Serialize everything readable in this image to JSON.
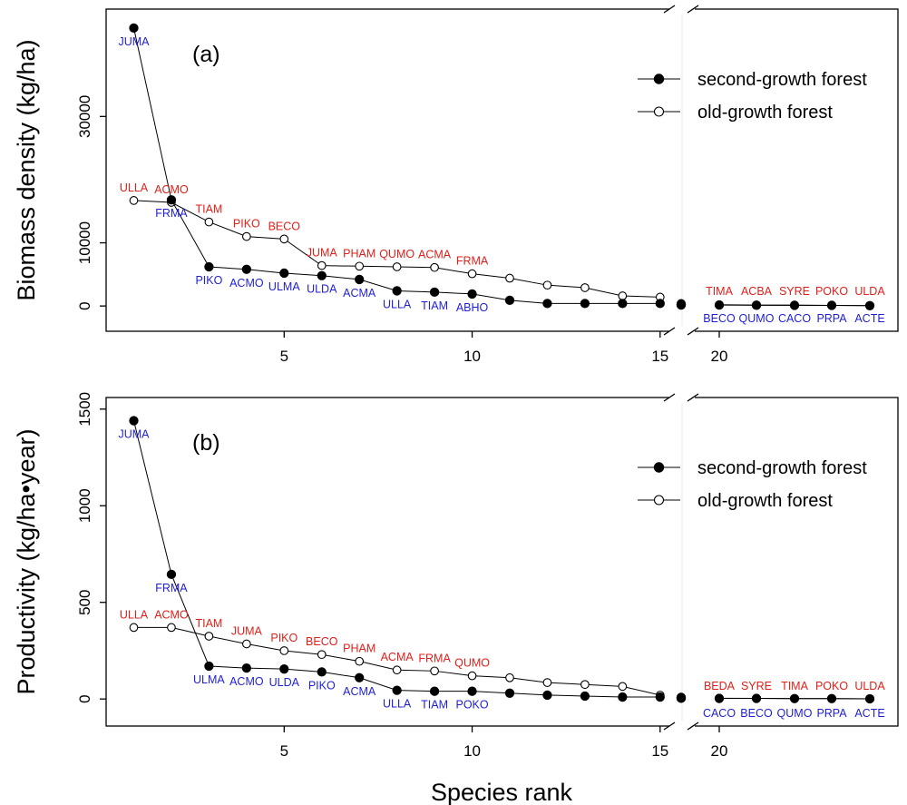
{
  "x_axis_label": "Species rank",
  "legend": {
    "second_growth": "second-growth forest",
    "old_growth": "old-growth forest"
  },
  "colors": {
    "label_second_growth": "#1f1fd6",
    "label_old_growth": "#e0201b"
  },
  "chart_data": [
    {
      "type": "line",
      "panel_label": "(a)",
      "ylabel": "Biomass density (kg/ha)",
      "xlabel": "Species rank",
      "x_axis_break": "between 15 and 20",
      "x_ticks": [
        5,
        10,
        15,
        20
      ],
      "y_ticks": [
        0,
        10000,
        30000
      ],
      "ylim": [
        -4000,
        47000
      ],
      "grid": false,
      "legend_position": "upper-right",
      "series": [
        {
          "name": "second-growth forest",
          "marker": "filled-circle",
          "x": [
            1,
            2,
            3,
            4,
            5,
            6,
            7,
            8,
            9,
            10,
            11,
            12,
            13,
            14,
            15,
            16,
            17,
            18,
            19,
            20,
            21,
            22,
            23,
            24
          ],
          "y": [
            44000,
            16800,
            6200,
            5800,
            5200,
            4800,
            4200,
            2400,
            2200,
            1900,
            900,
            400,
            400,
            400,
            400,
            300,
            200,
            200,
            150,
            150,
            120,
            100,
            100,
            50
          ],
          "labels": [
            {
              "x": 1,
              "text": "JUMA"
            },
            {
              "x": 2,
              "text": "FRMA"
            },
            {
              "x": 3,
              "text": "PIKO"
            },
            {
              "x": 4,
              "text": "ACMO"
            },
            {
              "x": 5,
              "text": "ULMA"
            },
            {
              "x": 6,
              "text": "ULDA"
            },
            {
              "x": 7,
              "text": "ACMA"
            },
            {
              "x": 8,
              "text": "ULLA"
            },
            {
              "x": 9,
              "text": "TIAM"
            },
            {
              "x": 10,
              "text": "ABHO"
            },
            {
              "x": 20,
              "text": "BECO"
            },
            {
              "x": 21,
              "text": "QUMO"
            },
            {
              "x": 22,
              "text": "CACO"
            },
            {
              "x": 23,
              "text": "PRPA"
            },
            {
              "x": 24,
              "text": "ACTE"
            }
          ]
        },
        {
          "name": "old-growth forest",
          "marker": "open-circle",
          "x": [
            1,
            2,
            3,
            4,
            5,
            6,
            7,
            8,
            9,
            10,
            11,
            12,
            13,
            14,
            15,
            16,
            17,
            18,
            19,
            20,
            21,
            22,
            23,
            24
          ],
          "y": [
            16700,
            16400,
            13300,
            11000,
            10600,
            6400,
            6300,
            6200,
            6100,
            5100,
            4400,
            3300,
            2900,
            1600,
            1400,
            400,
            300,
            250,
            200,
            200,
            150,
            150,
            100,
            50
          ],
          "labels": [
            {
              "x": 1,
              "text": "ULLA"
            },
            {
              "x": 2,
              "text": "ACMO"
            },
            {
              "x": 3,
              "text": "TIAM"
            },
            {
              "x": 4,
              "text": "PIKO"
            },
            {
              "x": 5,
              "text": "BECO"
            },
            {
              "x": 6,
              "text": "JUMA"
            },
            {
              "x": 7,
              "text": "PHAM"
            },
            {
              "x": 8,
              "text": "QUMO"
            },
            {
              "x": 9,
              "text": "ACMA"
            },
            {
              "x": 10,
              "text": "FRMA"
            },
            {
              "x": 20,
              "text": "TIMA"
            },
            {
              "x": 21,
              "text": "ACBA"
            },
            {
              "x": 22,
              "text": "SYRE"
            },
            {
              "x": 23,
              "text": "POKO"
            },
            {
              "x": 24,
              "text": "ULDA"
            }
          ]
        }
      ]
    },
    {
      "type": "line",
      "panel_label": "(b)",
      "ylabel": "Productivity (kg/ha•year)",
      "xlabel": "Species rank",
      "x_axis_break": "between 15 and 20",
      "x_ticks": [
        5,
        10,
        15,
        20
      ],
      "y_ticks": [
        0,
        500,
        1000,
        1500
      ],
      "ylim": [
        -140,
        1560
      ],
      "grid": false,
      "legend_position": "upper-right",
      "series": [
        {
          "name": "second-growth forest",
          "marker": "filled-circle",
          "x": [
            1,
            2,
            3,
            4,
            5,
            6,
            7,
            8,
            9,
            10,
            11,
            12,
            13,
            14,
            15,
            16,
            17,
            18,
            19,
            20,
            21,
            22,
            23,
            24
          ],
          "y": [
            1440,
            645,
            170,
            160,
            155,
            140,
            110,
            45,
            40,
            40,
            30,
            20,
            15,
            10,
            10,
            8,
            6,
            5,
            4,
            3,
            3,
            2,
            2,
            1
          ],
          "labels": [
            {
              "x": 1,
              "text": "JUMA"
            },
            {
              "x": 2,
              "text": "FRMA"
            },
            {
              "x": 3,
              "text": "ULMA"
            },
            {
              "x": 4,
              "text": "ACMO"
            },
            {
              "x": 5,
              "text": "ULDA"
            },
            {
              "x": 6,
              "text": "PIKO"
            },
            {
              "x": 7,
              "text": "ACMA"
            },
            {
              "x": 8,
              "text": "ULLA"
            },
            {
              "x": 9,
              "text": "TIAM"
            },
            {
              "x": 10,
              "text": "POKO"
            },
            {
              "x": 20,
              "text": "CACO"
            },
            {
              "x": 21,
              "text": "BECO"
            },
            {
              "x": 22,
              "text": "QUMO"
            },
            {
              "x": 23,
              "text": "PRPA"
            },
            {
              "x": 24,
              "text": "ACTE"
            }
          ]
        },
        {
          "name": "old-growth forest",
          "marker": "open-circle",
          "x": [
            1,
            2,
            3,
            4,
            5,
            6,
            7,
            8,
            9,
            10,
            11,
            12,
            13,
            14,
            15,
            16,
            17,
            18,
            19,
            20,
            21,
            22,
            23,
            24
          ],
          "y": [
            370,
            370,
            325,
            285,
            250,
            230,
            195,
            150,
            145,
            120,
            110,
            85,
            75,
            65,
            20,
            10,
            8,
            6,
            5,
            4,
            3,
            2,
            2,
            1
          ],
          "labels": [
            {
              "x": 1,
              "text": "ULLA"
            },
            {
              "x": 2,
              "text": "ACMO"
            },
            {
              "x": 3,
              "text": "TIAM"
            },
            {
              "x": 4,
              "text": "JUMA"
            },
            {
              "x": 5,
              "text": "PIKO"
            },
            {
              "x": 6,
              "text": "BECO"
            },
            {
              "x": 7,
              "text": "PHAM"
            },
            {
              "x": 8,
              "text": "ACMA"
            },
            {
              "x": 9,
              "text": "FRMA"
            },
            {
              "x": 10,
              "text": "QUMO"
            },
            {
              "x": 20,
              "text": "BEDA"
            },
            {
              "x": 21,
              "text": "SYRE"
            },
            {
              "x": 22,
              "text": "TIMA"
            },
            {
              "x": 23,
              "text": "POKO"
            },
            {
              "x": 24,
              "text": "ULDA"
            }
          ]
        }
      ]
    }
  ]
}
